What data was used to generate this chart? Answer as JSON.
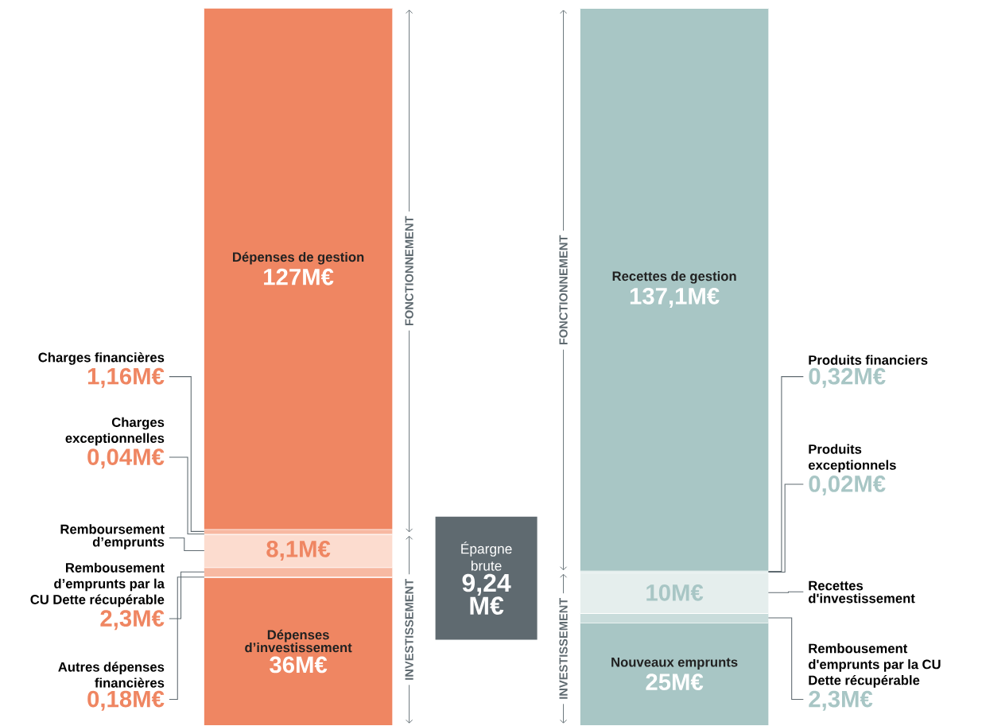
{
  "chart_data": {
    "type": "bar",
    "stacked": true,
    "categories": [
      null,
      null
    ],
    "series": [
      {
        "name": "Dépenses d’investissement",
        "color": "#ef8662",
        "values": [
          36,
          null
        ],
        "value_labels": [
          "36M€",
          null
        ]
      },
      {
        "name": "Autres dépenses financières",
        "color": "#f7b9a2",
        "values": [
          0.18,
          null
        ],
        "value_labels": [
          "0,18M€",
          null
        ]
      },
      {
        "name": "Rembousement d’emprunts par la CU Dette récupérable",
        "color": "#f7b9a2",
        "values": [
          2.3,
          null
        ],
        "value_labels": [
          "2,3M€",
          null
        ]
      },
      {
        "name": "Remboursement d’emprunts",
        "color": "#fcdccf",
        "values": [
          8.1,
          null
        ],
        "value_labels": [
          "8,1M€",
          null
        ]
      },
      {
        "name": "Charges exceptionnelles",
        "color": "#f7b9a2",
        "values": [
          0.04,
          null
        ],
        "value_labels": [
          "0,04M€",
          null
        ]
      },
      {
        "name": "Charges financières",
        "color": "#f7b9a2",
        "values": [
          1.16,
          null
        ],
        "value_labels": [
          "1,16M€",
          null
        ]
      },
      {
        "name": "Dépenses de gestion",
        "color": "#ef8662",
        "values": [
          127,
          null
        ],
        "value_labels": [
          "127M€",
          null
        ]
      },
      {
        "name": "Nouveaux emprunts",
        "color": "#a8c6c5",
        "values": [
          null,
          25
        ],
        "value_labels": [
          null,
          "25M€"
        ]
      },
      {
        "name": "Rembousement d'emprunts par la CU Dette récupérable",
        "color": "#c9dcdb",
        "values": [
          null,
          2.3
        ],
        "value_labels": [
          null,
          "2,3M€"
        ]
      },
      {
        "name": "Recettes d'investissement",
        "color": "#e5eeed",
        "values": [
          null,
          10
        ],
        "value_labels": [
          null,
          "10M€"
        ]
      },
      {
        "name": "Produits exceptionnels",
        "color": "#c9dcdb",
        "values": [
          null,
          0.02
        ],
        "value_labels": [
          null,
          "0,02M€"
        ]
      },
      {
        "name": "Produits financiers",
        "color": "#c9dcdb",
        "values": [
          null,
          0.32
        ],
        "value_labels": [
          null,
          "0,32M€"
        ]
      },
      {
        "name": "Recettes de gestion",
        "color": "#a8c6c5",
        "values": [
          null,
          137.1
        ],
        "value_labels": [
          null,
          "137,1M€"
        ]
      }
    ],
    "annotations": [
      "FONCTIONNEMENT",
      "INVESTISSEMENT",
      "FONCTIONNEMENT",
      "INVESTISSEMENT",
      "Épargne brute",
      "9,24 M€"
    ]
  }
}
